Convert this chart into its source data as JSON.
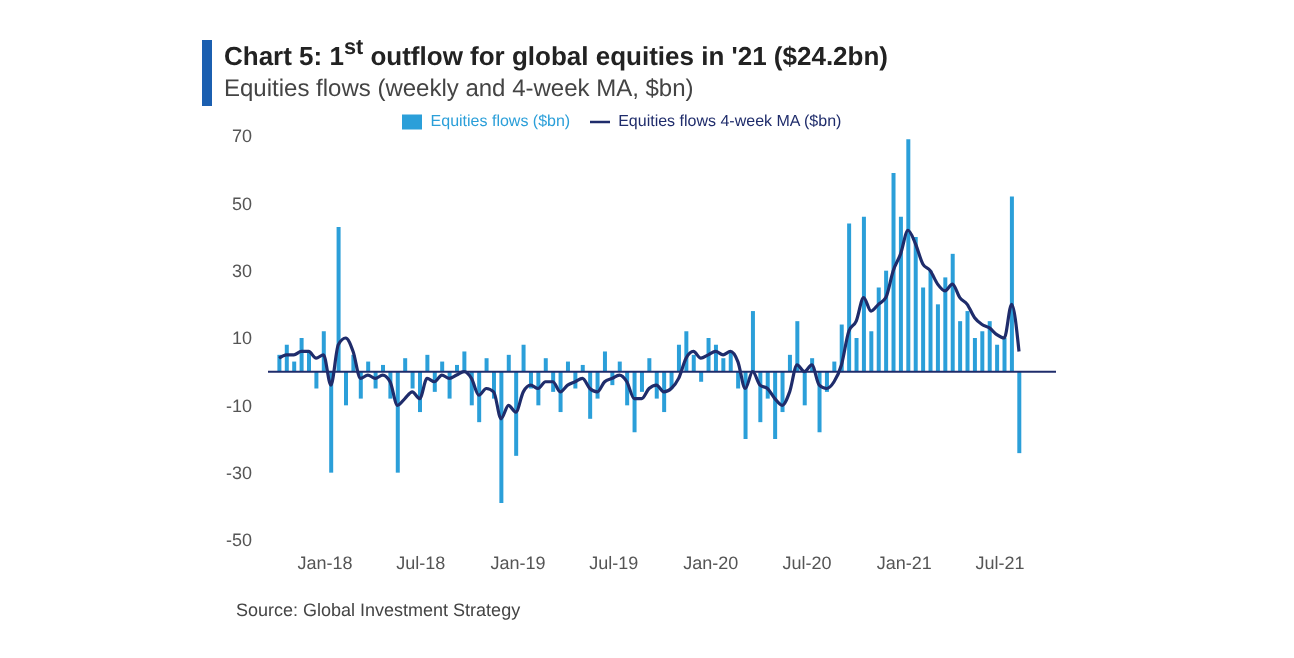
{
  "chart_data": {
    "type": "bar",
    "title": "Chart 5: 1$^{st}$ outflow for global equities in '21 ($24.2bn)",
    "subtitle": "Equities flows (weekly and 4-week MA, $bn)",
    "annotations": [
      "Source: Global Investment Strategy"
    ],
    "x": [
      "2017-10-06",
      "2017-10-20",
      "2017-11-03",
      "2017-11-17",
      "2017-12-01",
      "2017-12-15",
      "2017-12-29",
      "2018-01-12",
      "2018-01-26",
      "2018-02-09",
      "2018-02-23",
      "2018-03-09",
      "2018-03-23",
      "2018-04-06",
      "2018-04-20",
      "2018-05-04",
      "2018-05-18",
      "2018-06-01",
      "2018-06-15",
      "2018-06-29",
      "2018-07-13",
      "2018-07-27",
      "2018-08-10",
      "2018-08-24",
      "2018-09-07",
      "2018-09-21",
      "2018-10-05",
      "2018-10-19",
      "2018-11-02",
      "2018-11-16",
      "2018-11-30",
      "2018-12-14",
      "2018-12-28",
      "2019-01-11",
      "2019-01-25",
      "2019-02-08",
      "2019-02-22",
      "2019-03-08",
      "2019-03-22",
      "2019-04-05",
      "2019-04-19",
      "2019-05-03",
      "2019-05-17",
      "2019-05-31",
      "2019-06-14",
      "2019-06-28",
      "2019-07-12",
      "2019-07-26",
      "2019-08-09",
      "2019-08-23",
      "2019-09-06",
      "2019-09-20",
      "2019-10-04",
      "2019-10-18",
      "2019-11-01",
      "2019-11-15",
      "2019-11-29",
      "2019-12-13",
      "2019-12-27",
      "2020-01-10",
      "2020-01-24",
      "2020-02-07",
      "2020-02-21",
      "2020-03-06",
      "2020-03-20",
      "2020-04-03",
      "2020-04-17",
      "2020-05-01",
      "2020-05-15",
      "2020-05-29",
      "2020-06-12",
      "2020-06-26",
      "2020-07-10",
      "2020-07-24",
      "2020-08-07",
      "2020-08-21",
      "2020-09-04",
      "2020-09-18",
      "2020-10-02",
      "2020-10-16",
      "2020-10-30",
      "2020-11-13",
      "2020-11-27",
      "2020-12-11",
      "2020-12-25",
      "2021-01-08",
      "2021-01-22",
      "2021-02-05",
      "2021-02-19",
      "2021-03-05",
      "2021-03-19",
      "2021-04-02",
      "2021-04-16",
      "2021-04-30",
      "2021-05-14",
      "2021-05-28",
      "2021-06-11",
      "2021-06-25",
      "2021-07-09",
      "2021-07-23",
      "2021-08-06"
    ],
    "series": [
      {
        "name": "Equities flows ($bn)",
        "color": "#2b9fd9",
        "values": [
          5,
          8,
          3,
          10,
          6,
          -5,
          12,
          -30,
          43,
          -10,
          5,
          -8,
          3,
          -5,
          2,
          -8,
          -30,
          4,
          -5,
          -12,
          5,
          -6,
          3,
          -8,
          2,
          6,
          -10,
          -15,
          4,
          -8,
          -39,
          5,
          -25,
          8,
          -5,
          -10,
          4,
          -6,
          -12,
          3,
          -5,
          2,
          -14,
          -8,
          6,
          -4,
          3,
          -10,
          -18,
          -6,
          4,
          -8,
          -12,
          -5,
          8,
          12,
          5,
          -3,
          10,
          8,
          4,
          6,
          -5,
          -20,
          18,
          -15,
          -8,
          -20,
          -12,
          5,
          15,
          -10,
          4,
          -18,
          -6,
          3,
          14,
          44,
          10,
          46,
          12,
          25,
          30,
          59,
          46,
          69,
          40,
          25,
          30,
          20,
          28,
          35,
          15,
          18,
          10,
          12,
          15,
          8,
          10,
          52,
          -24.2
        ]
      },
      {
        "name": "Equities flows 4-week MA ($bn)",
        "type": "line",
        "color": "#1f2c6b",
        "values": [
          4,
          5,
          5,
          6,
          6,
          4,
          5,
          -4,
          8,
          10,
          6,
          -2,
          -1,
          -2,
          -1,
          -3,
          -10,
          -8,
          -6,
          -8,
          -2,
          -3,
          -1,
          -2,
          -1,
          0,
          -2,
          -7,
          -5,
          -6,
          -14,
          -10,
          -12,
          -6,
          -4,
          -5,
          -3,
          -3,
          -6,
          -4,
          -3,
          -2,
          -5,
          -6,
          -3,
          -2,
          -1,
          -3,
          -8,
          -8,
          -5,
          -4,
          -6,
          -5,
          -2,
          4,
          6,
          4,
          5,
          6,
          5,
          6,
          3,
          -5,
          0,
          -4,
          -5,
          -8,
          -10,
          -6,
          2,
          0,
          2,
          -4,
          -5,
          -3,
          2,
          12,
          15,
          22,
          18,
          20,
          22,
          30,
          35,
          42,
          38,
          32,
          30,
          26,
          24,
          26,
          22,
          20,
          16,
          14,
          13,
          11,
          10,
          20,
          6
        ]
      }
    ],
    "xlim": [
      "2017-09-15",
      "2021-10-15"
    ],
    "xticks": [
      {
        "value": "2018-01-01",
        "label": "Jan-18"
      },
      {
        "value": "2018-07-01",
        "label": "Jul-18"
      },
      {
        "value": "2019-01-01",
        "label": "Jan-19"
      },
      {
        "value": "2019-07-01",
        "label": "Jul-19"
      },
      {
        "value": "2020-01-01",
        "label": "Jan-20"
      },
      {
        "value": "2020-07-01",
        "label": "Jul-20"
      },
      {
        "value": "2021-01-01",
        "label": "Jan-21"
      },
      {
        "value": "2021-07-01",
        "label": "Jul-21"
      }
    ],
    "ylim": [
      -50,
      70
    ],
    "yticks": [
      -50,
      -30,
      -10,
      10,
      30,
      50,
      70
    ],
    "ref_lines": [
      {
        "axis": "y",
        "value": 0,
        "color": "#1f2c6b"
      }
    ],
    "legend": "top"
  }
}
